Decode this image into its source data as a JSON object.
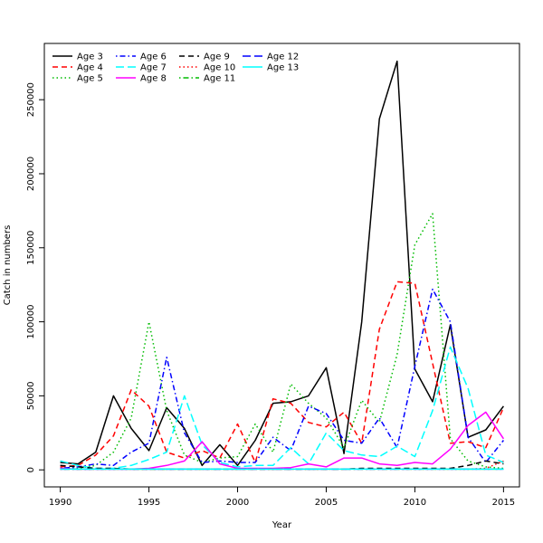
{
  "chart_data": {
    "type": "line",
    "title": "",
    "xlabel": "Year",
    "ylabel": "Catch in numbers",
    "xlim": [
      1989.1,
      2015.9
    ],
    "ylim": [
      -11500,
      288000
    ],
    "xticks": [
      1990,
      1995,
      2000,
      2005,
      2010,
      2015
    ],
    "yticks": [
      0,
      50000,
      100000,
      150000,
      200000,
      250000
    ],
    "legend_position": "top-left",
    "x": [
      1990,
      1991,
      1992,
      1993,
      1994,
      1995,
      1996,
      1997,
      1998,
      1999,
      2000,
      2001,
      2002,
      2003,
      2004,
      2005,
      2006,
      2007,
      2008,
      2009,
      2010,
      2011,
      2012,
      2013,
      2014,
      2015
    ],
    "series": [
      {
        "name": "Age 3",
        "color": "#000000",
        "dash": "solid",
        "values": [
          5000,
          4000,
          12000,
          50000,
          28000,
          13000,
          42000,
          28000,
          3000,
          17000,
          3000,
          20000,
          45000,
          46000,
          50000,
          69000,
          11000,
          100000,
          237000,
          276000,
          68000,
          46000,
          98000,
          22000,
          27000,
          43000
        ]
      },
      {
        "name": "Age 4",
        "color": "#ff0000",
        "dash": "dashed",
        "values": [
          2000,
          3000,
          10000,
          23000,
          54000,
          43000,
          12000,
          8000,
          13000,
          8000,
          31000,
          5000,
          48000,
          45000,
          32000,
          29000,
          39000,
          18000,
          95000,
          127000,
          126000,
          72000,
          18000,
          19000,
          15000,
          42000
        ]
      },
      {
        "name": "Age 5",
        "color": "#00bb00",
        "dash": "dotted",
        "values": [
          1000,
          1000,
          3000,
          12000,
          35000,
          100000,
          40000,
          10000,
          5000,
          8000,
          9000,
          31000,
          12000,
          58000,
          45000,
          35000,
          15000,
          47000,
          32000,
          78000,
          152000,
          173000,
          21000,
          6000,
          2000,
          1000
        ]
      },
      {
        "name": "Age 6",
        "color": "#0000ff",
        "dash": "dashdot",
        "values": [
          1000,
          2000,
          4000,
          3000,
          12000,
          18000,
          76000,
          25000,
          5000,
          6000,
          5000,
          5000,
          22000,
          13000,
          43000,
          38000,
          20000,
          18000,
          35000,
          15000,
          70000,
          122000,
          100000,
          22000,
          5000,
          20000
        ]
      },
      {
        "name": "Age 7",
        "color": "#00ffff",
        "dash": "longdash",
        "values": [
          6000,
          3000,
          1000,
          1000,
          3000,
          7000,
          12000,
          50000,
          17000,
          5000,
          2000,
          3000,
          3000,
          15000,
          4000,
          25000,
          13000,
          10000,
          9000,
          16000,
          9000,
          40000,
          83000,
          55000,
          10000,
          5000
        ]
      },
      {
        "name": "Age 8",
        "color": "#ff00ff",
        "dash": "solid",
        "values": [
          1000,
          500,
          500,
          500,
          500,
          1000,
          3000,
          6000,
          19000,
          4000,
          1000,
          1000,
          1000,
          1500,
          4000,
          2000,
          8000,
          8000,
          4000,
          3000,
          5000,
          4000,
          14000,
          30000,
          39000,
          21000
        ]
      },
      {
        "name": "Age 9",
        "color": "#000000",
        "dash": "dashed",
        "values": [
          3000,
          2000,
          1000,
          1000,
          500,
          500,
          500,
          500,
          500,
          500,
          500,
          500,
          500,
          500,
          500,
          500,
          500,
          1000,
          1000,
          1000,
          1000,
          1000,
          1000,
          3000,
          6000,
          4000
        ]
      },
      {
        "name": "Age 10",
        "color": "#ff0000",
        "dash": "dotted",
        "values": [
          500,
          500,
          500,
          500,
          500,
          500,
          500,
          500,
          500,
          500,
          500,
          500,
          500,
          500,
          500,
          500,
          500,
          500,
          500,
          500,
          500,
          500,
          500,
          500,
          1000,
          6000
        ]
      },
      {
        "name": "Age 11",
        "color": "#00bb00",
        "dash": "dashdot",
        "values": [
          500,
          500,
          500,
          500,
          500,
          500,
          500,
          500,
          500,
          500,
          500,
          500,
          500,
          500,
          500,
          500,
          500,
          500,
          500,
          500,
          500,
          500,
          500,
          500,
          500,
          500
        ]
      },
      {
        "name": "Age 12",
        "color": "#0000ff",
        "dash": "longdash",
        "values": [
          500,
          500,
          500,
          500,
          500,
          500,
          500,
          500,
          500,
          500,
          500,
          500,
          500,
          500,
          500,
          500,
          500,
          500,
          500,
          500,
          500,
          500,
          500,
          500,
          500,
          500
        ]
      },
      {
        "name": "Age 13",
        "color": "#00ffff",
        "dash": "solid",
        "values": [
          500,
          500,
          500,
          500,
          500,
          500,
          500,
          500,
          500,
          500,
          500,
          500,
          500,
          500,
          500,
          500,
          500,
          500,
          500,
          500,
          500,
          500,
          500,
          500,
          500,
          500
        ]
      }
    ]
  }
}
